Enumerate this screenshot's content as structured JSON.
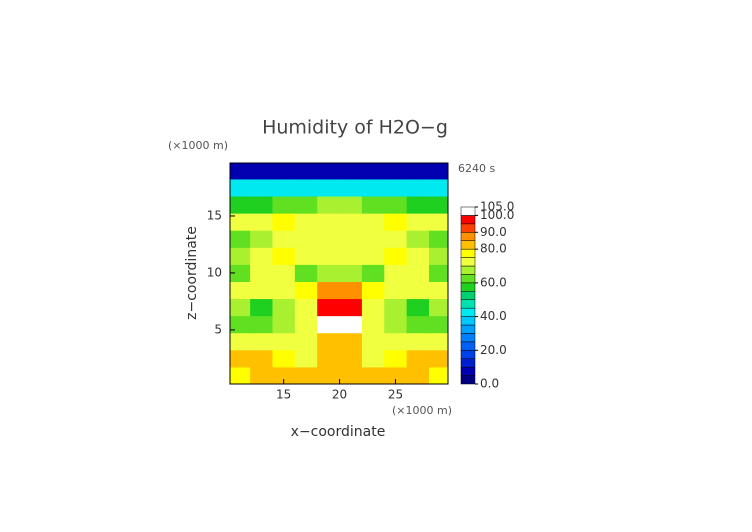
{
  "chart_data": {
    "type": "contour",
    "title": "Humidity of H2O−g",
    "subtitle": "6240 s",
    "x_label": "x−coordinate",
    "y_label": "z−coordinate",
    "x_unit": "(×1000 m)",
    "y_unit": "(×1000 m)",
    "xlim": [
      10.2,
      29.7
    ],
    "ylim": [
      0.25,
      19.65
    ],
    "xticks": [
      15,
      20,
      25
    ],
    "yticks": [
      5,
      10,
      15
    ],
    "x": [
      11,
      13,
      15,
      17,
      19,
      21,
      23,
      25,
      27,
      29
    ],
    "z": [
      1,
      2.5,
      4,
      5.5,
      7,
      8.5,
      10,
      11.5,
      13,
      14.5,
      16,
      17.5,
      19
    ],
    "values": [
      [
        78,
        82,
        82,
        80,
        82,
        84,
        80,
        82,
        82,
        78
      ],
      [
        82,
        80,
        76,
        74,
        80,
        82,
        74,
        76,
        80,
        82
      ],
      [
        72,
        74,
        72,
        70,
        80,
        84,
        70,
        72,
        74,
        72
      ],
      [
        62,
        62,
        66,
        72,
        102,
        102,
        72,
        66,
        62,
        62
      ],
      [
        66,
        58,
        66,
        74,
        96,
        96,
        74,
        66,
        58,
        66
      ],
      [
        72,
        74,
        74,
        76,
        88,
        88,
        76,
        74,
        74,
        72
      ],
      [
        64,
        72,
        74,
        62,
        66,
        66,
        62,
        74,
        72,
        64
      ],
      [
        68,
        74,
        76,
        74,
        70,
        70,
        74,
        76,
        74,
        68
      ],
      [
        62,
        66,
        72,
        74,
        70,
        70,
        74,
        72,
        66,
        62
      ],
      [
        72,
        74,
        76,
        74,
        72,
        72,
        74,
        76,
        74,
        72
      ],
      [
        58,
        58,
        62,
        64,
        66,
        66,
        64,
        62,
        58,
        58
      ],
      [
        40,
        40,
        42,
        42,
        44,
        44,
        42,
        42,
        40,
        40
      ],
      [
        8,
        8,
        8,
        8,
        8,
        8,
        8,
        8,
        8,
        8
      ]
    ],
    "clim": [
      0,
      105
    ],
    "levels": [
      0,
      5,
      10,
      15,
      20,
      25,
      30,
      35,
      40,
      45,
      50,
      55,
      60,
      65,
      70,
      75,
      80,
      85,
      90,
      95,
      100
    ],
    "colors": [
      "#000080",
      "#0000b0",
      "#0020d0",
      "#0040e8",
      "#0060f8",
      "#0080ff",
      "#00a0ff",
      "#00c8ff",
      "#00e8f0",
      "#00e0b0",
      "#00d070",
      "#20d020",
      "#60e020",
      "#a8f030",
      "#f0ff40",
      "#ffff00",
      "#ffc000",
      "#ff9000",
      "#ff4000",
      "#ff0000",
      "#ffffff"
    ],
    "cticks": [
      {
        "value": 0,
        "label": "0.0"
      },
      {
        "value": 20,
        "label": "20.0"
      },
      {
        "value": 40,
        "label": "40.0"
      },
      {
        "value": 60,
        "label": "60.0"
      },
      {
        "value": 80,
        "label": "80.0"
      },
      {
        "value": 90,
        "label": "90.0"
      },
      {
        "value": 100,
        "label": "100.0"
      },
      {
        "value": 105,
        "label": "105.0"
      }
    ]
  }
}
